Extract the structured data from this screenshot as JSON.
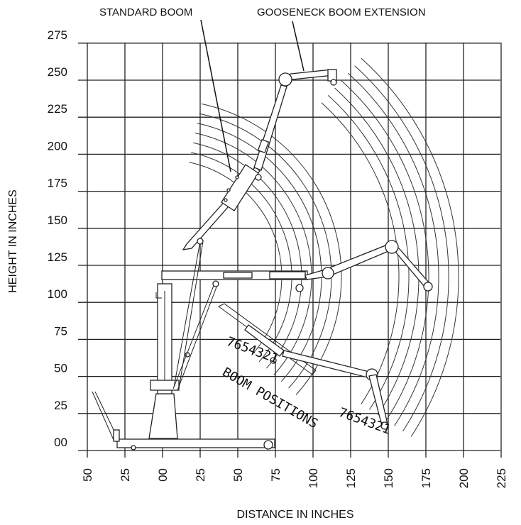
{
  "labels": {
    "standard_boom": "STANDARD BOOM",
    "gooseneck_extension": "GOOSENECK BOOM EXTENSION",
    "boom_positions_main": "BOOM POSITIONS",
    "boom_positions_set_1": "7654321",
    "boom_positions_set_2": "7654321"
  },
  "chart_data": {
    "type": "diagram",
    "xlabel": "DISTANCE IN INCHES",
    "ylabel": "HEIGHT IN INCHES",
    "x_ticks": [
      "50",
      "25",
      "00",
      "25",
      "50",
      "75",
      "100",
      "125",
      "150",
      "175",
      "200",
      "225"
    ],
    "y_ticks": [
      "00",
      "25",
      "50",
      "75",
      "100",
      "125",
      "150",
      "175",
      "200",
      "225",
      "250",
      "275"
    ],
    "boom_positions": [
      1,
      2,
      3,
      4,
      5,
      6,
      7
    ]
  }
}
